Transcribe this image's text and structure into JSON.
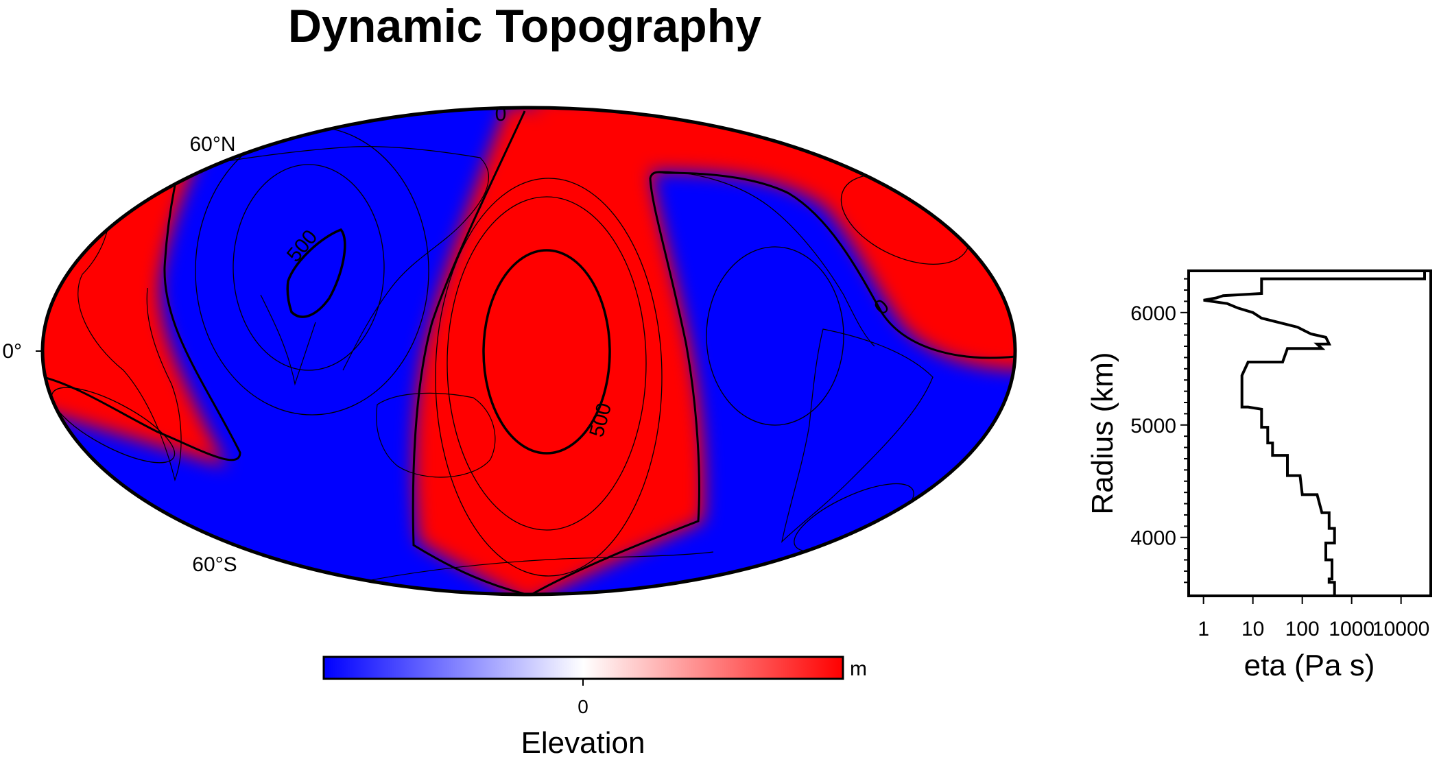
{
  "colors": {
    "positive": "#ff0000",
    "negative": "#0000ff",
    "neutral": "#ffffff",
    "outline": "#000000"
  },
  "chart_data": [
    {
      "type": "heatmap",
      "subtype": "mollweide-map",
      "title": "Dynamic Topography",
      "lat_labels": [
        "60°N",
        "0°",
        "60°S"
      ],
      "contour_labels": [
        "0",
        "500",
        "500"
      ],
      "colorbar": {
        "label": "Elevation",
        "unit": "m",
        "ticks": [
          "0"
        ]
      }
    },
    {
      "type": "line",
      "subtype": "step",
      "xlabel": "eta (Pa s)",
      "ylabel": "Radius (km)",
      "xscale": "log",
      "xlim": [
        0.5,
        40000
      ],
      "ylim": [
        3480,
        6371
      ],
      "xticks": [
        "1",
        "10",
        "100",
        "1000",
        "10000"
      ],
      "yticks": [
        "4000",
        "5000",
        "6000"
      ],
      "x": [
        30000,
        30000,
        15,
        15,
        2.5,
        1.8,
        1,
        3,
        5,
        10,
        15,
        80,
        150,
        300,
        350,
        200,
        250,
        50,
        40,
        8,
        6,
        6,
        8,
        15,
        15,
        20,
        20,
        25,
        25,
        50,
        50,
        90,
        100,
        200,
        250,
        350,
        350,
        450,
        450,
        300,
        300,
        400,
        400,
        350,
        350,
        450,
        450,
        350,
        350
      ],
      "y": [
        6371,
        6300,
        6300,
        6170,
        6150,
        6130,
        6110,
        6080,
        6040,
        6000,
        5950,
        5870,
        5810,
        5780,
        5720,
        5720,
        5680,
        5680,
        5560,
        5560,
        5440,
        5160,
        5160,
        5140,
        4980,
        4980,
        4840,
        4840,
        4730,
        4730,
        4550,
        4550,
        4380,
        4380,
        4220,
        4220,
        4080,
        4080,
        3950,
        3950,
        3800,
        3800,
        3630,
        3630,
        3600,
        3600,
        3480,
        3480,
        3480
      ]
    }
  ]
}
